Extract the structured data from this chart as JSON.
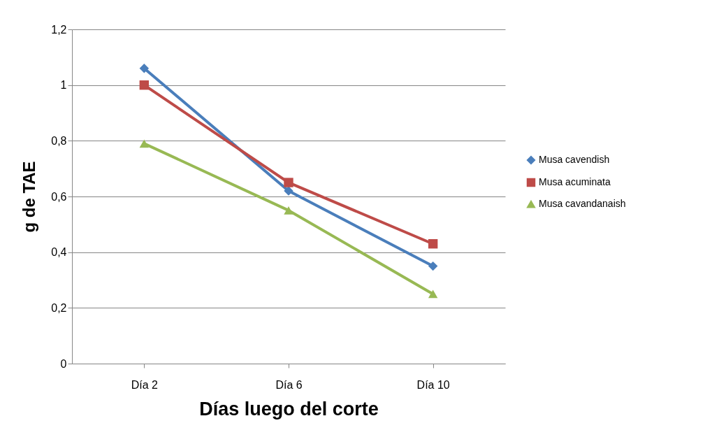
{
  "chart_data": {
    "type": "line",
    "xlabel": "Días luego del corte",
    "ylabel": "g de TAE",
    "categories": [
      "Día 2",
      "Día 6",
      "Día 10"
    ],
    "series": [
      {
        "name": "Musa cavendish",
        "color": "#4a7ebb",
        "marker": "diamond",
        "values": [
          1.06,
          0.62,
          0.35
        ]
      },
      {
        "name": "Musa acuminata",
        "color": "#be4b48",
        "marker": "square",
        "values": [
          1.0,
          0.65,
          0.43
        ]
      },
      {
        "name": "Musa cavandanaish",
        "color": "#98b954",
        "marker": "triangle",
        "values": [
          0.79,
          0.55,
          0.25
        ]
      }
    ],
    "ylim": [
      0,
      1.2
    ],
    "yticks": [
      0,
      {
        "value": 0.2,
        "label": "0,2"
      },
      {
        "value": 0.4,
        "label": "0,4"
      },
      {
        "value": 0.6,
        "label": "0,6"
      },
      {
        "value": 0.8,
        "label": "0,8"
      },
      1,
      {
        "value": 1.2,
        "label": "1,2"
      }
    ],
    "grid": "y",
    "legend": "right",
    "line_style": "solid"
  }
}
